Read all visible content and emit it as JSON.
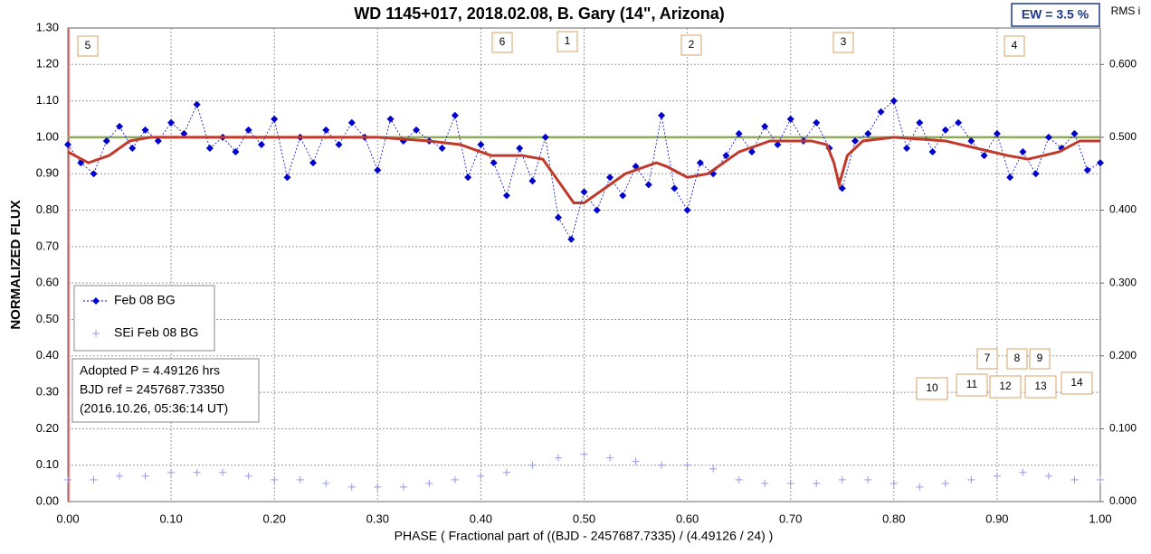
{
  "chart_data": {
    "type": "scatter",
    "title": "WD 1145+017, 2018.02.08, B. Gary (14\", Arizona)",
    "x_label": "PHASE  ( Fractional part of ((BJD - 2457687.7335)  / (4.49126  / 24) )",
    "y_label": "NORMALIZED  FLUX",
    "y2_label": "RMS i",
    "ew_label": "EW =  3.5 %",
    "info_box": [
      "Adopted P = 4.49126 hrs",
      "BJD ref = 2457687.73350",
      "(2016.10.26, 05:36:14 UT)"
    ],
    "annotations": [
      "5",
      "6",
      "1",
      "2",
      "3",
      "4",
      "7",
      "8",
      "9",
      "10",
      "11",
      "12",
      "13",
      "14"
    ],
    "legend": "center-left",
    "grid": true,
    "xlim": [
      0,
      1
    ],
    "ylim": [
      0,
      1.3
    ],
    "y2lim": [
      0,
      0.65
    ],
    "xticks": [
      {
        "value": 0,
        "label": "0.00"
      },
      {
        "value": 0.1,
        "label": "0.10"
      },
      {
        "value": 0.2,
        "label": "0.20"
      },
      {
        "value": 0.3,
        "label": "0.30"
      },
      {
        "value": 0.4,
        "label": "0.40"
      },
      {
        "value": 0.5,
        "label": "0.50"
      },
      {
        "value": 0.6,
        "label": "0.60"
      },
      {
        "value": 0.7,
        "label": "0.70"
      },
      {
        "value": 0.8,
        "label": "0.80"
      },
      {
        "value": 0.9,
        "label": "0.90"
      },
      {
        "value": 1,
        "label": "1.00"
      }
    ],
    "yticks": [
      {
        "value": 0,
        "label": "0.00"
      },
      {
        "value": 0.1,
        "label": "0.10"
      },
      {
        "value": 0.2,
        "label": "0.20"
      },
      {
        "value": 0.3,
        "label": "0.30"
      },
      {
        "value": 0.4,
        "label": "0.40"
      },
      {
        "value": 0.5,
        "label": "0.50"
      },
      {
        "value": 0.6,
        "label": "0.60"
      },
      {
        "value": 0.7,
        "label": "0.70"
      },
      {
        "value": 0.8,
        "label": "0.80"
      },
      {
        "value": 0.9,
        "label": "0.90"
      },
      {
        "value": 1,
        "label": "1.00"
      },
      {
        "value": 1.1,
        "label": "1.10"
      },
      {
        "value": 1.2,
        "label": "1.20"
      },
      {
        "value": 1.3,
        "label": "1.30"
      }
    ],
    "y2ticks": [
      {
        "value": 0,
        "label": "0.000"
      },
      {
        "value": 0.1,
        "label": "0.100"
      },
      {
        "value": 0.2,
        "label": "0.200"
      },
      {
        "value": 0.3,
        "label": "0.300"
      },
      {
        "value": 0.4,
        "label": "0.400"
      },
      {
        "value": 0.5,
        "label": "0.500"
      },
      {
        "value": 0.6,
        "label": "0.600"
      }
    ],
    "series": [
      {
        "name": "Feb 08 BG",
        "color": "#0000cc",
        "marker": "diamond",
        "x": [
          0,
          0.0125,
          0.025,
          0.0375,
          0.05,
          0.0625,
          0.075,
          0.0875,
          0.1,
          0.1125,
          0.125,
          0.1375,
          0.15,
          0.1625,
          0.175,
          0.1875,
          0.2,
          0.2125,
          0.225,
          0.2375,
          0.25,
          0.2625,
          0.275,
          0.2875,
          0.3,
          0.3125,
          0.325,
          0.3375,
          0.35,
          0.3625,
          0.375,
          0.3875,
          0.4,
          0.4125,
          0.425,
          0.4375,
          0.45,
          0.4625,
          0.475,
          0.4875,
          0.5,
          0.5125,
          0.525,
          0.5375,
          0.55,
          0.5625,
          0.575,
          0.5875,
          0.6,
          0.6125,
          0.625,
          0.6375,
          0.65,
          0.6625,
          0.675,
          0.6875,
          0.7,
          0.7125,
          0.725,
          0.7375,
          0.75,
          0.7625,
          0.775,
          0.7875,
          0.8,
          0.8125,
          0.825,
          0.8375,
          0.85,
          0.8625,
          0.875,
          0.8875,
          0.9,
          0.9125,
          0.925,
          0.9375,
          0.95,
          0.9625,
          0.975,
          0.9875,
          1
        ],
        "values": [
          0.98,
          0.93,
          0.9,
          0.99,
          1.03,
          0.97,
          1.02,
          0.99,
          1.04,
          1.01,
          1.09,
          0.97,
          1.0,
          0.96,
          1.02,
          0.98,
          1.05,
          0.89,
          1.0,
          0.93,
          1.02,
          0.98,
          1.04,
          1.0,
          0.91,
          1.05,
          0.99,
          1.02,
          0.99,
          0.97,
          1.06,
          0.89,
          0.98,
          0.93,
          0.84,
          0.97,
          0.88,
          1.0,
          0.78,
          0.72,
          0.85,
          0.8,
          0.89,
          0.84,
          0.92,
          0.87,
          1.06,
          0.86,
          0.8,
          0.93,
          0.9,
          0.95,
          1.01,
          0.96,
          1.03,
          0.98,
          1.05,
          0.99,
          1.04,
          0.97,
          0.86,
          0.99,
          1.01,
          1.07,
          1.1,
          0.97,
          1.04,
          0.96,
          1.02,
          1.04,
          0.99,
          0.95,
          1.01,
          0.89,
          0.96,
          0.9,
          1.0,
          0.97,
          1.01,
          0.91,
          0.93
        ]
      },
      {
        "color": "#c0392b",
        "marker": "none",
        "x": [
          0,
          0.02,
          0.04,
          0.06,
          0.08,
          0.12,
          0.2,
          0.3,
          0.35,
          0.38,
          0.41,
          0.44,
          0.46,
          0.48,
          0.49,
          0.5,
          0.52,
          0.54,
          0.57,
          0.58,
          0.6,
          0.62,
          0.65,
          0.68,
          0.72,
          0.735,
          0.742,
          0.747,
          0.755,
          0.77,
          0.8,
          0.85,
          0.88,
          0.91,
          0.93,
          0.96,
          0.98,
          1
        ],
        "values": [
          0.96,
          0.93,
          0.95,
          0.99,
          1.0,
          1.0,
          1.0,
          1.0,
          0.99,
          0.98,
          0.95,
          0.95,
          0.94,
          0.86,
          0.82,
          0.82,
          0.86,
          0.9,
          0.93,
          0.92,
          0.89,
          0.9,
          0.96,
          0.99,
          0.99,
          0.98,
          0.93,
          0.87,
          0.95,
          0.99,
          1.0,
          0.99,
          0.97,
          0.95,
          0.94,
          0.96,
          0.99,
          0.99
        ]
      },
      {
        "color": "#8faa5c",
        "marker": "none",
        "x": [
          0,
          1
        ],
        "values": [
          1,
          1
        ]
      },
      {
        "name": "SEi Feb 08 BG",
        "color": "#9999dd",
        "marker": "plus",
        "axis": "y2",
        "x": [
          0,
          0.025,
          0.05,
          0.075,
          0.1,
          0.125,
          0.15,
          0.175,
          0.2,
          0.225,
          0.25,
          0.275,
          0.3,
          0.325,
          0.35,
          0.375,
          0.4,
          0.425,
          0.45,
          0.475,
          0.5,
          0.525,
          0.55,
          0.575,
          0.6,
          0.625,
          0.65,
          0.675,
          0.7,
          0.725,
          0.75,
          0.775,
          0.8,
          0.825,
          0.85,
          0.875,
          0.9,
          0.925,
          0.95,
          0.975,
          1
        ],
        "values": [
          0.03,
          0.03,
          0.035,
          0.035,
          0.04,
          0.04,
          0.04,
          0.035,
          0.03,
          0.03,
          0.025,
          0.02,
          0.02,
          0.02,
          0.025,
          0.03,
          0.035,
          0.04,
          0.05,
          0.06,
          0.065,
          0.06,
          0.055,
          0.05,
          0.05,
          0.045,
          0.03,
          0.025,
          0.025,
          0.025,
          0.03,
          0.03,
          0.025,
          0.02,
          0.025,
          0.03,
          0.035,
          0.04,
          0.035,
          0.03,
          0.03
        ]
      }
    ]
  }
}
